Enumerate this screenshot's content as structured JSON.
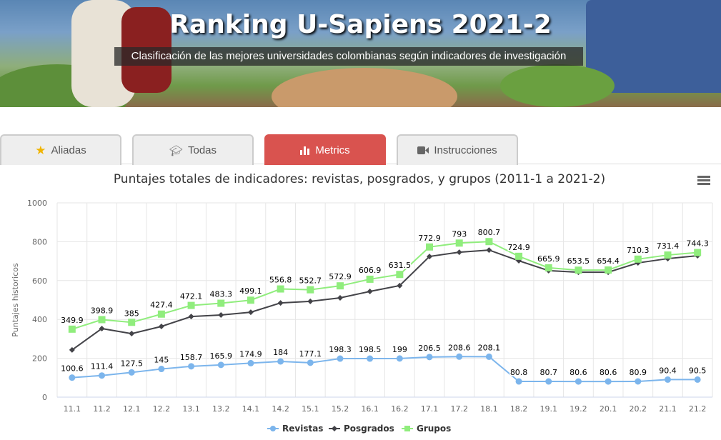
{
  "header": {
    "title": "Ranking U-Sapiens 2021-2",
    "subtitle": "Clasificación de las mejores universidades colombianas según indicadores de investigación"
  },
  "tabs": [
    {
      "label": "Aliadas",
      "icon": "star-icon"
    },
    {
      "label": "Todas",
      "icon": "graduation-cap-icon"
    },
    {
      "label": "Metrics",
      "icon": "bar-chart-icon",
      "active": true
    },
    {
      "label": "Instrucciones",
      "icon": "video-camera-icon"
    }
  ],
  "chart_data": {
    "type": "line",
    "title": "Puntajes totales de indicadores: revistas, posgrados, y grupos (2011-1 a 2021-2)",
    "xlabel": "",
    "ylabel": "Puntajes historicos",
    "ylim": [
      0,
      1000
    ],
    "yticks": [
      0,
      200,
      400,
      600,
      800,
      1000
    ],
    "grid": true,
    "legend": "bottom",
    "categories": [
      "11.1",
      "11.2",
      "12.1",
      "12.2",
      "13.1",
      "13.2",
      "14.1",
      "14.2",
      "15.1",
      "15.2",
      "16.1",
      "16.2",
      "17.1",
      "17.2",
      "18.1",
      "18.2",
      "19.1",
      "19.2",
      "20.1",
      "20.2",
      "21.1",
      "21.2"
    ],
    "series": [
      {
        "name": "Revistas",
        "color": "#7cb5ec",
        "marker": "circle",
        "labels": true,
        "values": [
          100.6,
          111.4,
          127.5,
          145,
          158.7,
          165.9,
          174.9,
          184,
          177.1,
          198.3,
          198.5,
          199,
          206.5,
          208.6,
          208.1,
          80.8,
          80.7,
          80.6,
          80.6,
          80.9,
          90.4,
          90.5
        ]
      },
      {
        "name": "Posgrados",
        "color": "#434348",
        "marker": "diamond",
        "labels": false,
        "values": [
          243,
          353,
          327,
          364,
          415,
          423,
          437,
          485,
          493,
          511,
          544,
          574,
          724,
          746,
          757,
          702,
          651,
          643,
          643,
          691,
          713,
          728
        ]
      },
      {
        "name": "Grupos",
        "color": "#90ed7d",
        "marker": "square",
        "labels": true,
        "values": [
          349.9,
          398.9,
          385,
          427.4,
          472.1,
          483.3,
          499.1,
          556.8,
          552.7,
          572.9,
          606.9,
          631.5,
          772.9,
          793,
          800.7,
          724.9,
          665.9,
          653.5,
          654.4,
          710.3,
          731.4,
          744.3
        ]
      }
    ]
  }
}
